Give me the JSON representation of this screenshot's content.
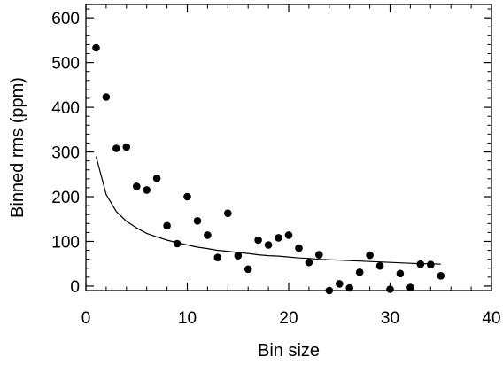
{
  "chart_data": {
    "type": "scatter",
    "title": "",
    "xlabel": "Bin size",
    "ylabel": "Binned rms (ppm)",
    "xlim": [
      0,
      40
    ],
    "ylim": [
      -10,
      630
    ],
    "xticks": [
      0,
      10,
      20,
      30,
      40
    ],
    "yticks": [
      0,
      100,
      200,
      300,
      400,
      500,
      600
    ],
    "xtick_labels": [
      "0",
      "10",
      "20",
      "30",
      "40"
    ],
    "ytick_labels": [
      "0",
      "100",
      "200",
      "300",
      "400",
      "500",
      "600"
    ],
    "x_minor_step": 2,
    "y_minor_step": 20,
    "grid": false,
    "legend": "none",
    "series": [
      {
        "kind": "points",
        "marker": "filled-circle",
        "color": "#000000",
        "x": [
          1,
          2,
          3,
          4,
          5,
          6,
          7,
          8,
          9,
          10,
          11,
          12,
          13,
          14,
          15,
          16,
          17,
          18,
          19,
          20,
          21,
          22,
          23,
          24,
          25,
          26,
          27,
          28,
          29,
          30,
          31,
          32,
          33,
          34,
          35
        ],
        "y": [
          533,
          423,
          308,
          311,
          223,
          215,
          241,
          135,
          95,
          200,
          146,
          114,
          64,
          163,
          68,
          38,
          103,
          92,
          108,
          114,
          85,
          53,
          70,
          -10,
          5,
          -4,
          31,
          69,
          45,
          -7,
          28,
          -3,
          49,
          48,
          23
        ]
      },
      {
        "kind": "line",
        "color": "#000000",
        "x": [
          1,
          2,
          3,
          4,
          5,
          6,
          7,
          8,
          9,
          10,
          11,
          12,
          13,
          14,
          15,
          16,
          17,
          18,
          19,
          20,
          21,
          22,
          23,
          24,
          25,
          26,
          27,
          28,
          29,
          30,
          31,
          32,
          33,
          34,
          35
        ],
        "y": [
          290,
          205,
          167,
          145,
          130,
          118,
          110,
          103,
          97,
          92,
          87,
          84,
          80,
          78,
          75,
          73,
          70,
          68,
          67,
          65,
          63,
          62,
          60,
          59,
          58,
          57,
          56,
          55,
          54,
          53,
          52,
          51,
          50,
          50,
          49
        ]
      }
    ]
  }
}
